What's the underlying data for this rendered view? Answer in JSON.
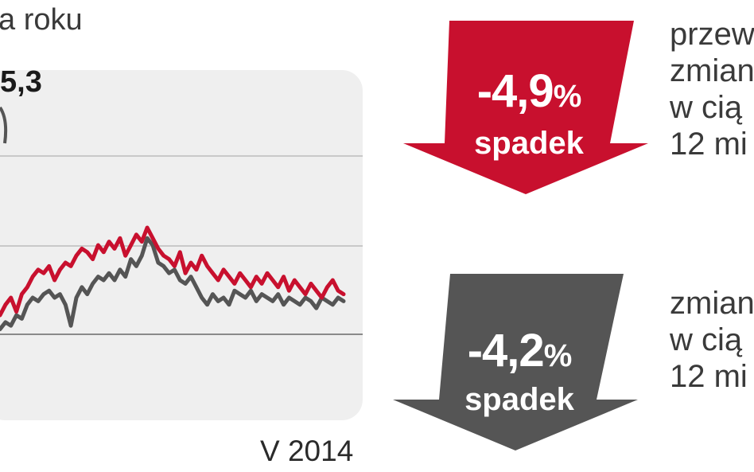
{
  "header": {
    "subtitle": "a roku",
    "peak_value": "5,3"
  },
  "chart_data": {
    "type": "line",
    "xlabel_end": "V 2014",
    "grid": true,
    "series": [
      {
        "color": "#c8102e",
        "values": [
          30,
          33,
          35,
          31,
          36,
          38,
          41,
          43,
          42,
          44,
          40,
          43,
          45,
          44,
          47,
          49,
          48,
          46,
          50,
          48,
          51,
          49,
          52,
          47,
          50,
          53,
          51,
          55,
          52,
          49,
          47,
          46,
          44,
          48,
          42,
          45,
          43,
          47,
          44,
          42,
          40,
          43,
          41,
          39,
          42,
          40,
          38,
          41,
          39,
          42,
          40,
          38,
          41,
          37,
          40,
          38,
          36,
          39,
          37,
          35,
          38,
          40,
          37,
          36
        ]
      },
      {
        "color": "#555555",
        "values": [
          26,
          28,
          27,
          30,
          29,
          33,
          35,
          34,
          36,
          37,
          35,
          36,
          33,
          27,
          35,
          38,
          36,
          39,
          41,
          40,
          42,
          40,
          43,
          41,
          46,
          44,
          47,
          52,
          50,
          45,
          44,
          42,
          43,
          40,
          39,
          41,
          38,
          35,
          33,
          36,
          34,
          35,
          33,
          37,
          36,
          35,
          37,
          34,
          36,
          35,
          34,
          36,
          33,
          35,
          34,
          33,
          35,
          34,
          32,
          35,
          34,
          33,
          35,
          34
        ]
      }
    ]
  },
  "indicators": [
    {
      "value": "-4,9",
      "unit": "%",
      "word": "spadek",
      "color": "#c8102e",
      "side_lines": [
        "przew",
        "zmian",
        "w cią",
        "12 mi"
      ]
    },
    {
      "value": "-4,2",
      "unit": "%",
      "word": "spadek",
      "color": "#555555",
      "side_lines": [
        "zmian",
        "w cią",
        "12 mi"
      ]
    }
  ]
}
